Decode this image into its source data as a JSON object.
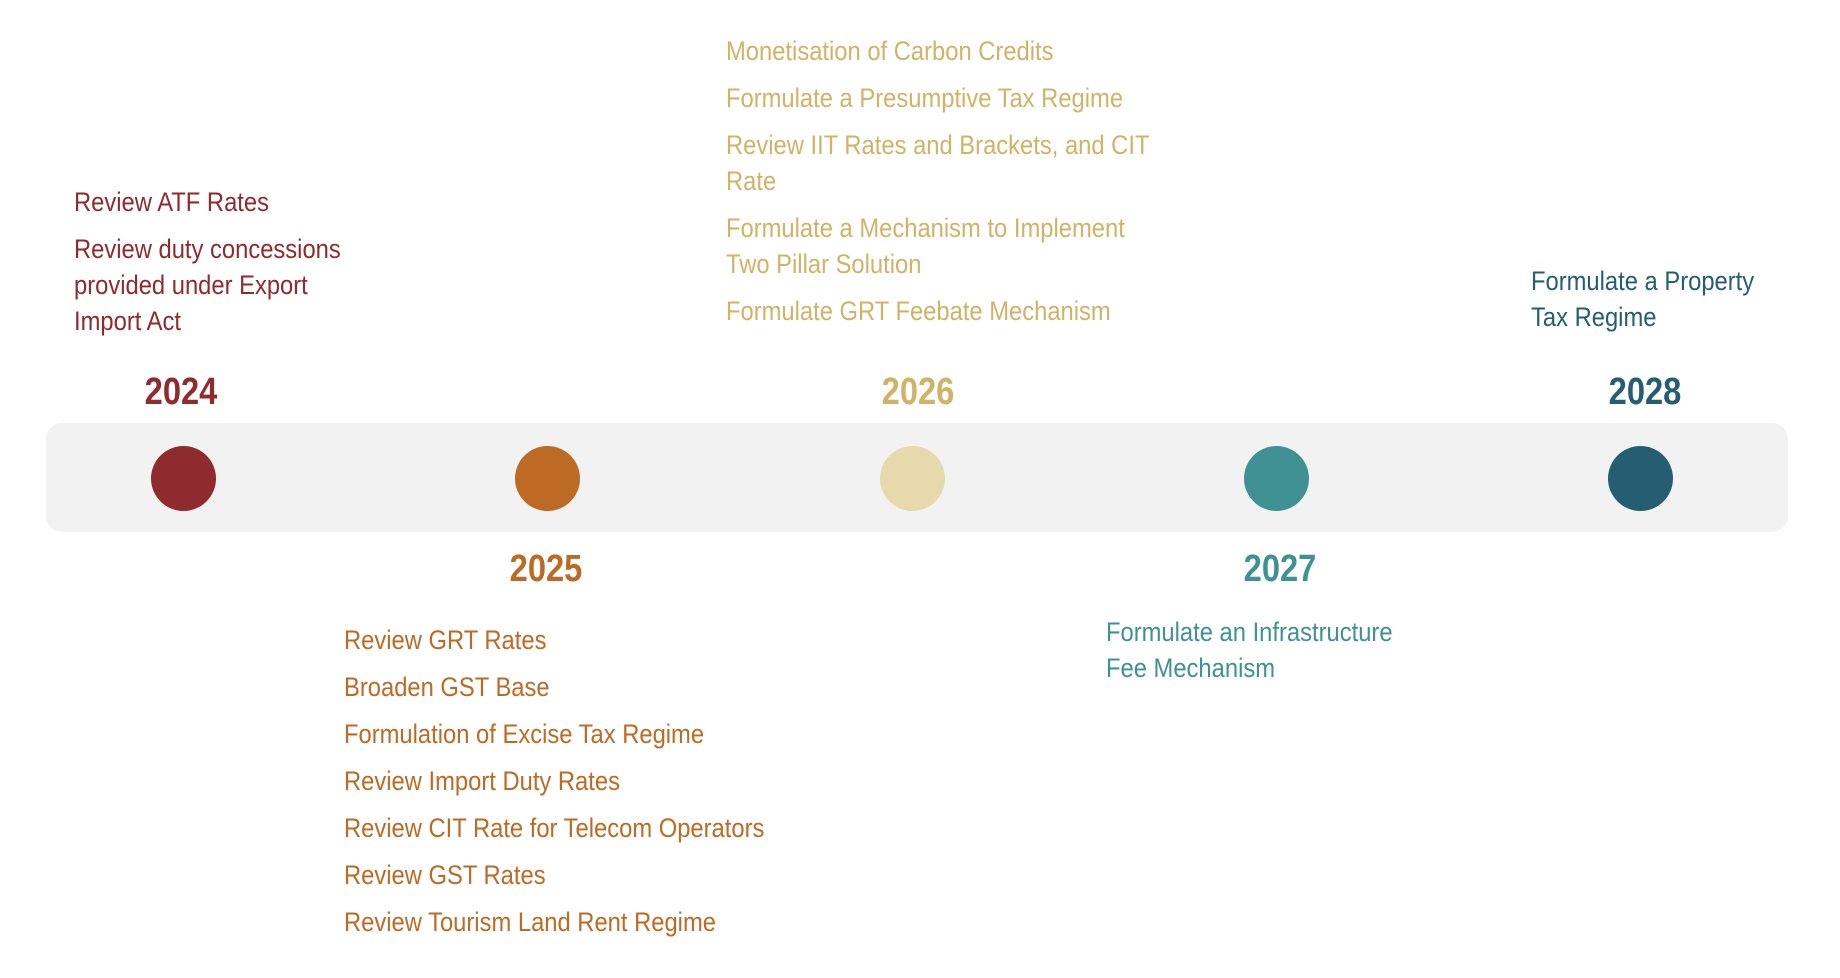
{
  "timeline": {
    "milestones": [
      {
        "year": "2024",
        "color": "#8f2a2e",
        "dot_color": "#8f2a2e",
        "items": [
          "Review ATF Rates",
          "Review duty concessions provided under Export Import Act"
        ]
      },
      {
        "year": "2025",
        "color": "#bd6a24",
        "dot_color": "#bd6a24",
        "items": [
          "Review GRT Rates",
          "Broaden GST Base",
          "Formulation of Excise Tax Regime",
          "Review Import Duty Rates",
          "Review CIT Rate for Telecom Operators",
          "Review GST Rates",
          "Review Tourism Land Rent Regime"
        ]
      },
      {
        "year": "2026",
        "color": "#d1b368",
        "dot_color": "#e8d9ac",
        "items": [
          "Monetisation of Carbon Credits",
          "Formulate a Presumptive Tax Regime",
          "Review IIT Rates and Brackets, and CIT Rate",
          "Formulate a Mechanism to Implement Two Pillar Solution",
          "Formulate GRT Feebate Mechanism"
        ]
      },
      {
        "year": "2027",
        "color": "#3f9194",
        "dot_color": "#3f9194",
        "items": [
          "Formulate an Infrastructure Fee Mechanism"
        ]
      },
      {
        "year": "2028",
        "color": "#255e73",
        "dot_color": "#255e73",
        "items": [
          "Formulate a Property Tax Regime"
        ]
      }
    ]
  }
}
